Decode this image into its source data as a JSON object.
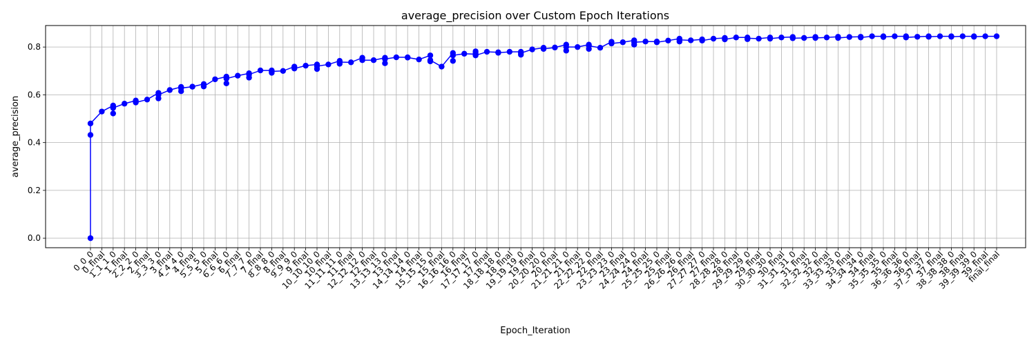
{
  "chart_data": {
    "type": "line",
    "title": "average_precision over Custom Epoch Iterations",
    "xlabel": "Epoch_Iteration",
    "ylabel": "average_precision",
    "ylim": [
      -0.04,
      0.89
    ],
    "y_ticks": [
      "0.0",
      "0.2",
      "0.4",
      "0.6",
      "0.8"
    ],
    "y_tick_values": [
      0.0,
      0.2,
      0.4,
      0.6,
      0.8
    ],
    "grid": true,
    "color": "#0000ff",
    "x_ticks": [
      "0_0_0",
      "0_final",
      "1_1_1_0",
      "1_final",
      "2_2_2_0",
      "2_final",
      "3_3_3_0",
      "3_final",
      "4_4_4_0",
      "4_final",
      "5_5_5_0",
      "5_final",
      "6_6_6_0",
      "6_final",
      "7_7_7_0",
      "7_final",
      "8_8_8_0",
      "8_final",
      "9_9_9_0",
      "9_final",
      "10_10_10_0",
      "10_final",
      "11_11_11_0",
      "11_final",
      "12_12_12_0",
      "12_final",
      "13_13_13_0",
      "13_final",
      "14_14_14_0",
      "14_final",
      "15_15_15_0",
      "15_final",
      "16_16_16_0",
      "16_final",
      "17_17_17_0",
      "17_final",
      "18_18_18_0",
      "18_final",
      "19_19_19_0",
      "19_final",
      "20_20_20_0",
      "20_final",
      "21_21_21_0",
      "21_final",
      "22_22_22_0",
      "22_final",
      "23_23_23_0",
      "23_final",
      "24_24_24_0",
      "24_final",
      "25_25_25_0",
      "25_final",
      "26_26_26_0",
      "26_final",
      "27_27_27_0",
      "27_final",
      "28_28_28_0",
      "28_final",
      "29_29_29_0",
      "29_final",
      "30_30_30_0",
      "30_final",
      "31_31_31_0",
      "31_final",
      "32_32_32_0",
      "32_final",
      "33_33_33_0",
      "33_final",
      "34_34_34_0",
      "34_final",
      "35_35_35_0",
      "35_final",
      "36_36_36_0",
      "36_final",
      "37_37_37_0",
      "37_final",
      "38_38_38_0",
      "38_final",
      "39_39_39_0",
      "39_final",
      "final_final"
    ],
    "series": [
      {
        "points": [
          [
            0,
            0.0
          ],
          [
            0,
            0.432
          ],
          [
            0,
            0.48
          ],
          [
            1,
            0.53
          ],
          [
            2,
            0.555
          ],
          [
            2,
            0.522
          ],
          [
            2,
            0.545
          ],
          [
            3,
            0.563
          ],
          [
            4,
            0.576
          ],
          [
            4,
            0.568
          ],
          [
            5,
            0.58
          ],
          [
            6,
            0.608
          ],
          [
            6,
            0.585
          ],
          [
            6,
            0.6
          ],
          [
            7,
            0.62
          ],
          [
            8,
            0.633
          ],
          [
            8,
            0.615
          ],
          [
            8,
            0.628
          ],
          [
            9,
            0.634
          ],
          [
            10,
            0.645
          ],
          [
            10,
            0.635
          ],
          [
            11,
            0.665
          ],
          [
            12,
            0.676
          ],
          [
            12,
            0.648
          ],
          [
            12,
            0.668
          ],
          [
            13,
            0.68
          ],
          [
            14,
            0.69
          ],
          [
            14,
            0.672
          ],
          [
            14,
            0.685
          ],
          [
            15,
            0.702
          ],
          [
            16,
            0.702
          ],
          [
            16,
            0.692
          ],
          [
            16,
            0.698
          ],
          [
            17,
            0.7
          ],
          [
            18,
            0.718
          ],
          [
            18,
            0.71
          ],
          [
            19,
            0.722
          ],
          [
            20,
            0.727
          ],
          [
            20,
            0.708
          ],
          [
            20,
            0.72
          ],
          [
            21,
            0.727
          ],
          [
            22,
            0.742
          ],
          [
            22,
            0.73
          ],
          [
            22,
            0.737
          ],
          [
            23,
            0.736
          ],
          [
            24,
            0.755
          ],
          [
            24,
            0.745
          ],
          [
            25,
            0.745
          ],
          [
            26,
            0.755
          ],
          [
            26,
            0.732
          ],
          [
            26,
            0.75
          ],
          [
            27,
            0.757
          ],
          [
            28,
            0.757
          ],
          [
            28,
            0.756
          ],
          [
            29,
            0.748
          ],
          [
            30,
            0.765
          ],
          [
            30,
            0.74
          ],
          [
            30,
            0.745
          ],
          [
            31,
            0.718
          ],
          [
            32,
            0.775
          ],
          [
            32,
            0.742
          ],
          [
            32,
            0.765
          ],
          [
            33,
            0.772
          ],
          [
            34,
            0.77
          ],
          [
            34,
            0.775
          ],
          [
            34,
            0.782
          ],
          [
            34,
            0.765
          ],
          [
            35,
            0.78
          ],
          [
            36,
            0.778
          ],
          [
            36,
            0.776
          ],
          [
            37,
            0.78
          ],
          [
            38,
            0.78
          ],
          [
            38,
            0.768
          ],
          [
            38,
            0.775
          ],
          [
            39,
            0.79
          ],
          [
            40,
            0.797
          ],
          [
            40,
            0.792
          ],
          [
            41,
            0.798
          ],
          [
            42,
            0.81
          ],
          [
            42,
            0.785
          ],
          [
            42,
            0.8
          ],
          [
            43,
            0.8
          ],
          [
            44,
            0.81
          ],
          [
            44,
            0.792
          ],
          [
            44,
            0.805
          ],
          [
            45,
            0.797
          ],
          [
            46,
            0.822
          ],
          [
            46,
            0.815
          ],
          [
            47,
            0.82
          ],
          [
            48,
            0.828
          ],
          [
            48,
            0.81
          ],
          [
            48,
            0.82
          ],
          [
            49,
            0.823
          ],
          [
            50,
            0.823
          ],
          [
            50,
            0.82
          ],
          [
            51,
            0.827
          ],
          [
            52,
            0.835
          ],
          [
            52,
            0.823
          ],
          [
            52,
            0.83
          ],
          [
            53,
            0.828
          ],
          [
            54,
            0.832
          ],
          [
            54,
            0.827
          ],
          [
            55,
            0.835
          ],
          [
            56,
            0.838
          ],
          [
            56,
            0.832
          ],
          [
            57,
            0.84
          ],
          [
            58,
            0.84
          ],
          [
            58,
            0.833
          ],
          [
            58,
            0.837
          ],
          [
            59,
            0.835
          ],
          [
            60,
            0.84
          ],
          [
            60,
            0.835
          ],
          [
            61,
            0.84
          ],
          [
            62,
            0.842
          ],
          [
            62,
            0.837
          ],
          [
            63,
            0.838
          ],
          [
            64,
            0.842
          ],
          [
            64,
            0.838
          ],
          [
            65,
            0.84
          ],
          [
            66,
            0.843
          ],
          [
            66,
            0.838
          ],
          [
            67,
            0.842
          ],
          [
            68,
            0.843
          ],
          [
            68,
            0.84
          ],
          [
            69,
            0.845
          ],
          [
            70,
            0.845
          ],
          [
            70,
            0.842
          ],
          [
            71,
            0.845
          ],
          [
            72,
            0.845
          ],
          [
            72,
            0.84
          ],
          [
            73,
            0.843
          ],
          [
            74,
            0.845
          ],
          [
            74,
            0.843
          ],
          [
            75,
            0.845
          ],
          [
            76,
            0.845
          ],
          [
            76,
            0.843
          ],
          [
            77,
            0.845
          ],
          [
            78,
            0.845
          ],
          [
            78,
            0.843
          ],
          [
            79,
            0.845
          ],
          [
            80,
            0.845
          ]
        ]
      }
    ]
  }
}
